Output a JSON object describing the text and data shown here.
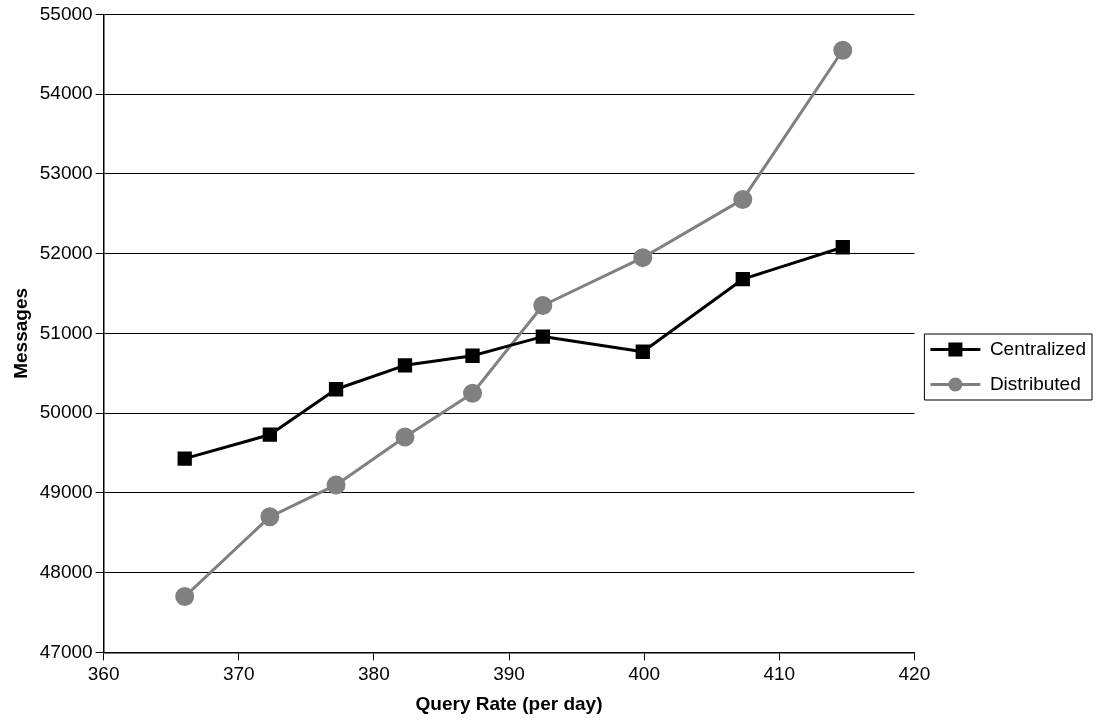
{
  "chart_data": {
    "type": "line",
    "xlabel": "Query Rate (per day)",
    "ylabel": "Messages",
    "x": [
      366,
      372.3,
      377.2,
      382.3,
      387.3,
      392.5,
      399.9,
      407.3,
      414.7
    ],
    "series": [
      {
        "name": "Centralized",
        "color": "#000000",
        "marker": "square",
        "values": [
          49430,
          49730,
          50300,
          50600,
          50720,
          50960,
          50770,
          51680,
          52080
        ]
      },
      {
        "name": "Distributed",
        "color": "#808080",
        "marker": "circle",
        "values": [
          47700,
          48700,
          49100,
          49700,
          50250,
          51350,
          51950,
          52680,
          54550
        ]
      }
    ],
    "xlim": [
      360,
      420
    ],
    "xticks": [
      360,
      370,
      380,
      390,
      400,
      410,
      420
    ],
    "ylim": [
      47000,
      55000
    ],
    "yticks": [
      47000,
      48000,
      49000,
      50000,
      51000,
      52000,
      53000,
      54000,
      55000
    ],
    "grid": "y",
    "legend": "right",
    "line_style": "solid"
  }
}
